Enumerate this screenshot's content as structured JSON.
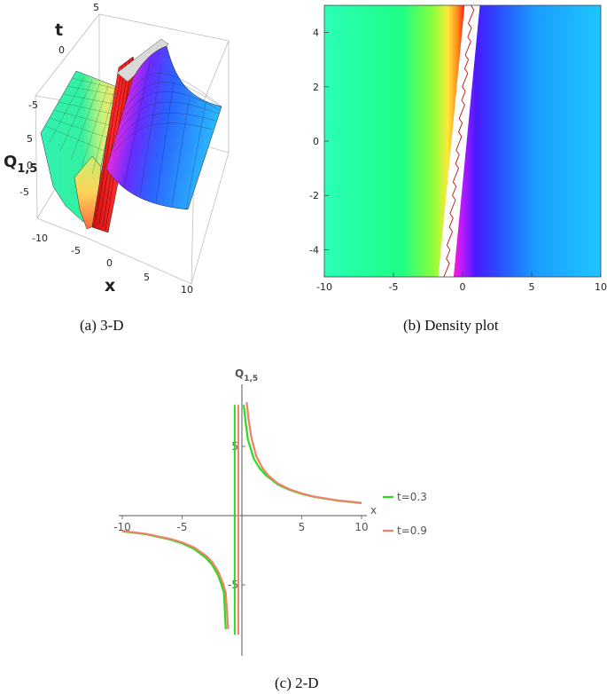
{
  "figure": {
    "captions": {
      "a": "(a) 3-D",
      "b": "(b) Density plot",
      "c": "(c) 2-D"
    }
  },
  "chart_data": [
    {
      "id": "a",
      "type": "surface3d",
      "xlabel": "x",
      "ylabel": "t",
      "zlabel": "Q",
      "zlabel_sub": "1,5",
      "x_ticks": [
        "-10",
        "-5",
        "0",
        "5",
        "10"
      ],
      "t_ticks": [
        "-5",
        "0",
        "5"
      ],
      "z_ticks": [
        "5",
        "0",
        "-5"
      ],
      "xlim": [
        -10,
        10
      ],
      "tlim": [
        -5,
        5
      ],
      "zlim": [
        -8,
        8
      ],
      "colors": [
        "#1affc0",
        "#fff07a",
        "#ff2b2b",
        "#ff2bd2",
        "#3b2bff",
        "#1fb6ff"
      ]
    },
    {
      "id": "b",
      "type": "heatmap",
      "x_ticks": [
        "-10",
        "-5",
        "0",
        "5",
        "10"
      ],
      "y_ticks": [
        "4",
        "2",
        "0",
        "-2",
        "-4"
      ],
      "xlim": [
        -10,
        10
      ],
      "ylim": [
        -5,
        5
      ],
      "singular_line": {
        "x_at_y_min": -1.2,
        "x_at_y_max": 0.7
      },
      "colormap": [
        "#2bffb2",
        "#1aff80",
        "#e8ff3a",
        "#ff9a1a",
        "#ff1a1a",
        "#ffffff",
        "#ff1ad1",
        "#5a1aff",
        "#2b3bff",
        "#1a9cff",
        "#1fc2ff"
      ]
    },
    {
      "id": "c",
      "type": "line",
      "xlabel": "x",
      "ylabel": "Q",
      "ylabel_sub": "1,5",
      "xlim": [
        -10,
        10
      ],
      "ylim": [
        -10,
        10
      ],
      "x_ticks": [
        "-10",
        "-5",
        "5",
        "10"
      ],
      "y_ticks": [
        "5",
        "-5"
      ],
      "series": [
        {
          "name": "t=0.3",
          "color": "#2bdc1b",
          "pole": -0.6,
          "x": [
            -10,
            -8,
            -6,
            -5,
            -4,
            -3,
            -2.5,
            -2,
            -1.7,
            -1.5,
            -1.35,
            0.15,
            0.3,
            0.5,
            1,
            1.5,
            2,
            3,
            4,
            5,
            6,
            8,
            10
          ],
          "y": [
            -1.13,
            -1.35,
            -1.73,
            -2.0,
            -2.4,
            -3.06,
            -3.53,
            -4.3,
            -5.0,
            -5.6,
            -8.2,
            8.0,
            6.8,
            5.5,
            4.1,
            3.4,
            2.92,
            2.25,
            1.85,
            1.57,
            1.36,
            1.08,
            0.9
          ]
        },
        {
          "name": "t=0.9",
          "color": "#f08068",
          "pole": -0.3,
          "x": [
            -10,
            -8,
            -6,
            -5,
            -4,
            -3,
            -2.5,
            -2,
            -1.6,
            -1.35,
            -1.15,
            0.4,
            0.55,
            0.8,
            1.2,
            1.7,
            2.2,
            3,
            4,
            5,
            6,
            8,
            10
          ],
          "y": [
            -1.1,
            -1.32,
            -1.68,
            -1.93,
            -2.3,
            -2.9,
            -3.34,
            -4.0,
            -4.85,
            -5.6,
            -8.2,
            8.2,
            7.0,
            5.6,
            4.3,
            3.45,
            2.9,
            2.32,
            1.9,
            1.6,
            1.38,
            1.1,
            0.92
          ]
        }
      ],
      "singular_lines": [
        {
          "x": -0.6,
          "color": "#2bdc1b"
        },
        {
          "x": -0.3,
          "color": "#f08068"
        }
      ],
      "legend_position": "right"
    }
  ]
}
